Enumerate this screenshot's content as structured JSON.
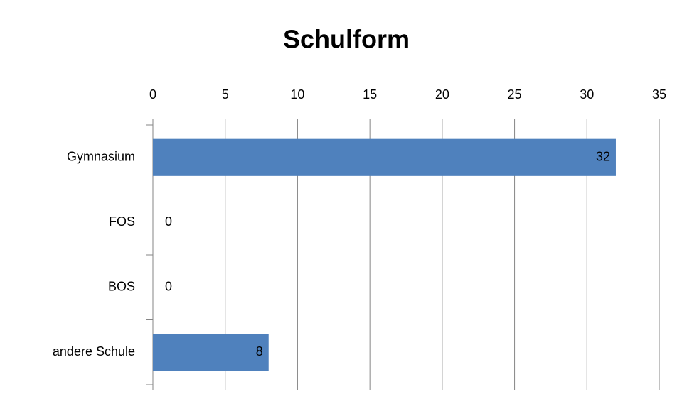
{
  "chart_data": {
    "type": "bar",
    "orientation": "horizontal",
    "title": "Schulform",
    "categories": [
      "Gymnasium",
      "FOS",
      "BOS",
      "andere Schule"
    ],
    "values": [
      32,
      0,
      0,
      8
    ],
    "color": "#4f81bd",
    "xlim": [
      0,
      35
    ],
    "xticks": [
      0,
      5,
      10,
      15,
      20,
      25,
      30,
      35
    ],
    "grid": true
  }
}
